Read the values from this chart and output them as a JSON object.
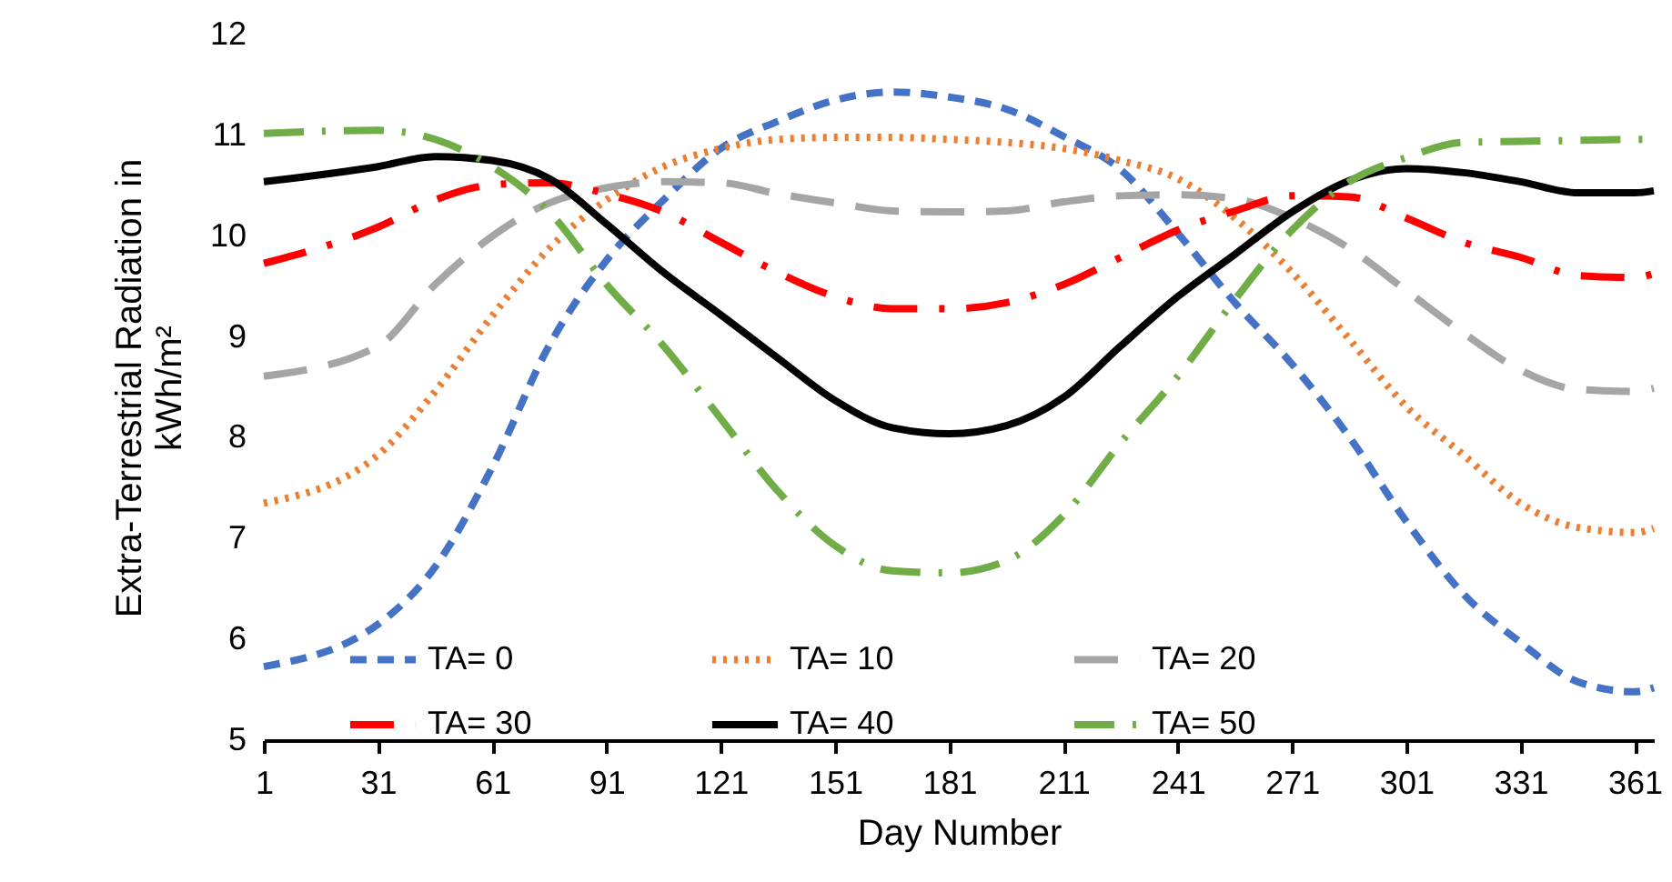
{
  "chart_data": {
    "type": "line",
    "xlabel": "Day Number",
    "ylabel": "Extra-Terrestrial Radiation in kWh/m²",
    "x": [
      1,
      31,
      46,
      61,
      76,
      91,
      106,
      121,
      136,
      151,
      166,
      181,
      196,
      211,
      226,
      241,
      256,
      271,
      286,
      301,
      316,
      331,
      346,
      361,
      366
    ],
    "series": [
      {
        "name": "TA= 0",
        "color": "#4472c4",
        "line_style": "dashed",
        "values": [
          5.73,
          6.15,
          6.72,
          7.71,
          8.92,
          9.76,
          10.36,
          10.87,
          11.14,
          11.35,
          11.43,
          11.38,
          11.26,
          10.99,
          10.66,
          10.03,
          9.34,
          8.73,
          8.01,
          7.17,
          6.45,
          5.97,
          5.58,
          5.48,
          5.52
        ]
      },
      {
        "name": "TA= 10",
        "color": "#ed7d31",
        "line_style": "dotted",
        "values": [
          7.35,
          7.83,
          8.46,
          9.21,
          9.88,
          10.36,
          10.69,
          10.87,
          10.96,
          10.98,
          10.98,
          10.96,
          10.93,
          10.87,
          10.75,
          10.57,
          10.18,
          9.64,
          8.98,
          8.31,
          7.83,
          7.35,
          7.11,
          7.06,
          7.1
        ]
      },
      {
        "name": "TA= 20",
        "color": "#a5a5a5",
        "line_style": "dashed",
        "values": [
          8.61,
          8.91,
          9.52,
          10.0,
          10.33,
          10.48,
          10.54,
          10.53,
          10.42,
          10.33,
          10.25,
          10.24,
          10.25,
          10.34,
          10.4,
          10.41,
          10.37,
          10.18,
          9.88,
          9.46,
          9.04,
          8.67,
          8.48,
          8.46,
          8.49
        ]
      },
      {
        "name": "TA= 30",
        "color": "#ff0000",
        "line_style": "dashed",
        "values": [
          9.73,
          10.09,
          10.36,
          10.51,
          10.53,
          10.42,
          10.24,
          9.94,
          9.64,
          9.4,
          9.28,
          9.28,
          9.34,
          9.52,
          9.79,
          10.06,
          10.25,
          10.4,
          10.39,
          10.18,
          9.94,
          9.79,
          9.61,
          9.59,
          9.63
        ]
      },
      {
        "name": "TA= 40",
        "color": "#000000",
        "line_style": "solid",
        "values": [
          10.54,
          10.69,
          10.79,
          10.75,
          10.57,
          10.12,
          9.64,
          9.22,
          8.79,
          8.37,
          8.1,
          8.04,
          8.12,
          8.4,
          8.91,
          9.4,
          9.82,
          10.24,
          10.55,
          10.67,
          10.63,
          10.54,
          10.43,
          10.43,
          10.45
        ]
      },
      {
        "name": "TA= 50",
        "color": "#70ad47",
        "line_style": "dashed",
        "values": [
          11.02,
          11.05,
          10.96,
          10.69,
          10.24,
          9.52,
          8.91,
          8.19,
          7.47,
          6.93,
          6.68,
          6.66,
          6.78,
          7.23,
          7.95,
          8.61,
          9.37,
          10.06,
          10.54,
          10.78,
          10.93,
          10.94,
          10.95,
          10.96,
          10.96
        ]
      }
    ],
    "xlim": [
      1,
      366
    ],
    "xticks": [
      1,
      31,
      61,
      91,
      121,
      151,
      181,
      211,
      241,
      271,
      301,
      331,
      361
    ],
    "ylim": [
      5,
      12
    ],
    "yticks": [
      5,
      6,
      7,
      8,
      9,
      10,
      11,
      12
    ],
    "grid": false,
    "legend": "bottom",
    "marker": "none"
  }
}
